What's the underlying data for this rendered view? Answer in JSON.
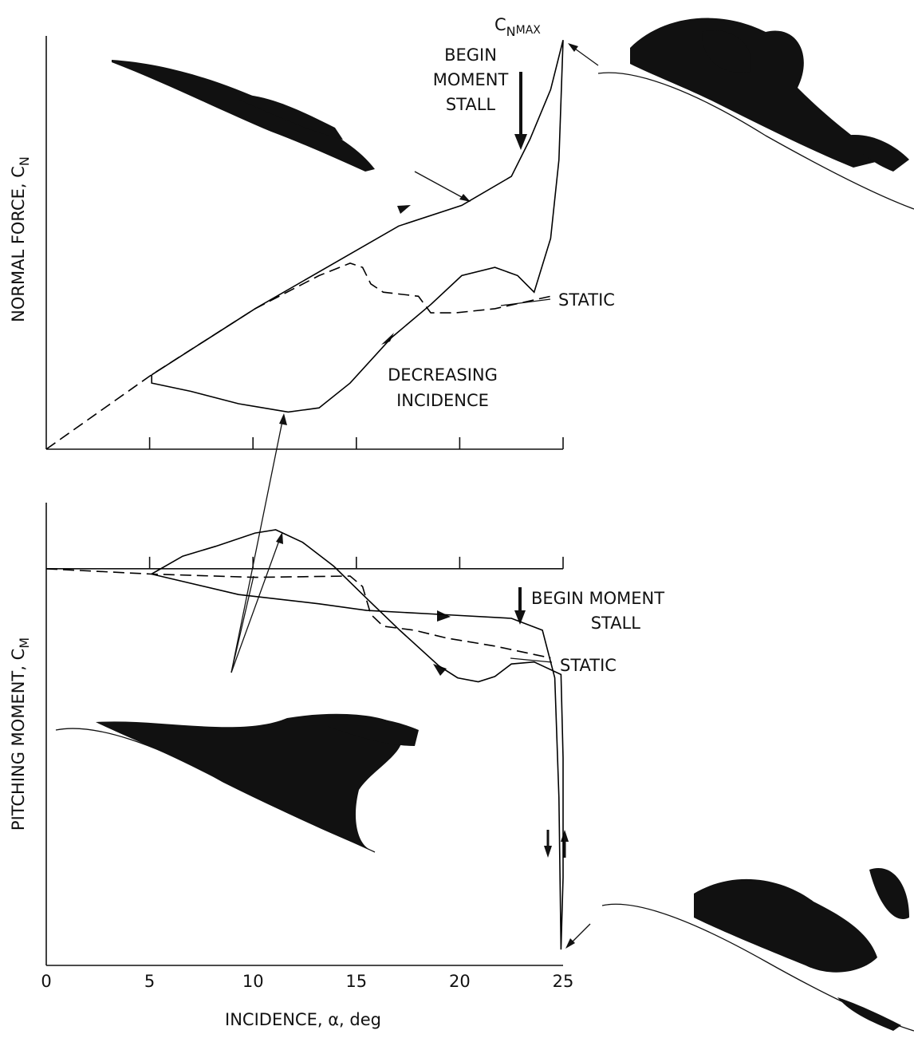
{
  "chart_data": [
    {
      "type": "line",
      "xlim": [
        0,
        25
      ],
      "xticks": [
        0,
        5,
        10,
        15,
        20,
        25
      ],
      "ylim": [
        0,
        1
      ],
      "y_label": {
        "text": "NORMAL FORCE, C",
        "sub": "N"
      },
      "annotations": {
        "cn_max": {
          "text": "C",
          "sub": "N",
          "subsub": "MAX"
        },
        "begin": [
          "BEGIN",
          "MOMENT",
          "STALL"
        ],
        "decreasing": [
          "DECREASING",
          "INCIDENCE"
        ]
      },
      "series": [
        {
          "name": "STATIC",
          "color": "#000000",
          "dashed": true,
          "x": [
            0,
            5.09,
            10.1,
            13.2,
            14.7,
            15.3,
            15.7,
            16.3,
            18.0,
            18.6,
            19.8,
            21.7,
            24.4
          ],
          "values": [
            0,
            0.18,
            0.34,
            0.42,
            0.45,
            0.44,
            0.4,
            0.38,
            0.37,
            0.33,
            0.33,
            0.34,
            0.37
          ]
        },
        {
          "color": "#000000",
          "dashed": false,
          "x": [
            5.1,
            10.1,
            17.05,
            20.1,
            22.5,
            23.4,
            24.4,
            25.0,
            24.8,
            24.4,
            23.6,
            22.8,
            21.7,
            20.1,
            18.6,
            16.7,
            14.7,
            13.2,
            11.7,
            9.3,
            7.0,
            5.1,
            5.1
          ],
          "values": [
            0.18,
            0.34,
            0.54,
            0.59,
            0.66,
            0.75,
            0.87,
            0.99,
            0.7,
            0.51,
            0.38,
            0.42,
            0.44,
            0.42,
            0.35,
            0.27,
            0.16,
            0.1,
            0.09,
            0.11,
            0.14,
            0.16,
            0.18
          ]
        }
      ]
    },
    {
      "type": "line",
      "xlim": [
        0,
        25
      ],
      "xticks": [
        0,
        5,
        10,
        15,
        20,
        25
      ],
      "ylim": [
        -0.6,
        0.1
      ],
      "y_label": {
        "text": "PITCHING MOMENT, C",
        "sub": "M"
      },
      "x_label": "INCIDENCE, α, deg",
      "annotations": {
        "begin": [
          "BEGIN MOMENT",
          "STALL"
        ]
      },
      "series": [
        {
          "name": "STATIC",
          "color": "#000000",
          "dashed": true,
          "x": [
            0,
            5.09,
            10.1,
            14.7,
            15.3,
            15.7,
            16.3,
            17.8,
            19.4,
            21.7,
            24.4
          ],
          "values": [
            0,
            -0.008,
            -0.013,
            -0.011,
            -0.027,
            -0.069,
            -0.087,
            -0.093,
            -0.105,
            -0.117,
            -0.135
          ]
        },
        {
          "color": "#000000",
          "dashed": false,
          "x": [
            5.09,
            9.3,
            13.2,
            15.5,
            19.0,
            22.5,
            24.0,
            24.6,
            24.8,
            24.9,
            25.0,
            25.0,
            24.9,
            23.6,
            22.5,
            21.7,
            20.9,
            19.9,
            19.0,
            17.1,
            15.5,
            13.9,
            12.4,
            11.1,
            10.1,
            8.2,
            6.6,
            5.09
          ],
          "values": [
            -0.008,
            -0.039,
            -0.053,
            -0.063,
            -0.069,
            -0.075,
            -0.093,
            -0.165,
            -0.346,
            -0.576,
            -0.467,
            -0.286,
            -0.16,
            -0.141,
            -0.144,
            -0.163,
            -0.171,
            -0.165,
            -0.147,
            -0.093,
            -0.045,
            0.004,
            0.04,
            0.059,
            0.054,
            0.034,
            0.019,
            -0.008
          ]
        }
      ]
    }
  ]
}
